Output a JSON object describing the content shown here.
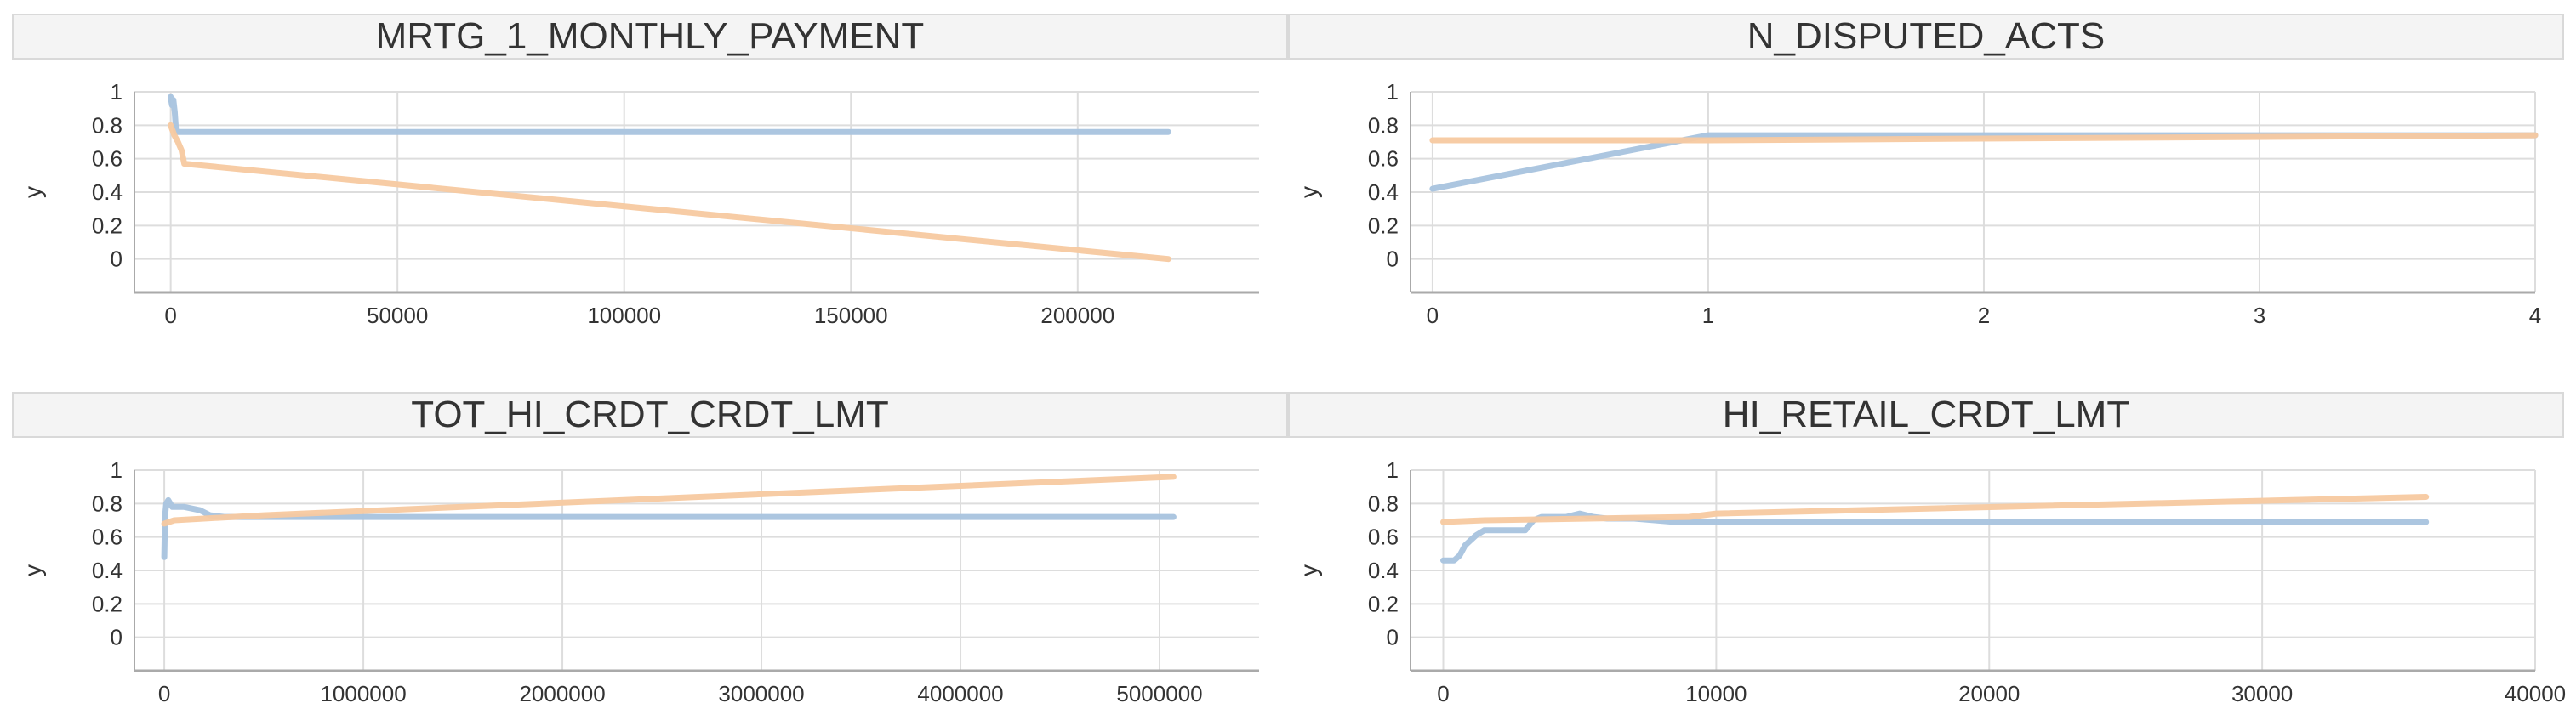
{
  "colors": {
    "series_blue": "#a8c3de",
    "series_orange": "#f7c9a0",
    "grid": "#dddddd",
    "axis": "#aaaaaa"
  },
  "chart_data": [
    {
      "type": "line",
      "title": "MRTG_1_MONTHLY_PAYMENT",
      "xlabel": "",
      "ylabel": "y",
      "xlim": [
        -8000,
        240000
      ],
      "ylim": [
        -0.2,
        1.0
      ],
      "xticks": [
        0,
        50000,
        100000,
        150000,
        200000
      ],
      "xtick_labels": [
        "0",
        "50000",
        "100000",
        "150000",
        "200000"
      ],
      "yticks": [
        0,
        0.2,
        0.4,
        0.6,
        0.8,
        1
      ],
      "ytick_labels": [
        "0",
        "0.2",
        "0.4",
        "0.6",
        "0.8",
        "1"
      ],
      "grid": true,
      "series": [
        {
          "color": "#a8c3de",
          "x": [
            0,
            300,
            600,
            900,
            1200,
            1500,
            220000
          ],
          "y": [
            0.97,
            0.92,
            0.95,
            0.88,
            0.76,
            0.76,
            0.76
          ]
        },
        {
          "color": "#f7c9a0",
          "x": [
            0,
            800,
            1600,
            2400,
            3000,
            220000
          ],
          "y": [
            0.8,
            0.74,
            0.7,
            0.65,
            0.57,
            0.0
          ]
        }
      ]
    },
    {
      "type": "line",
      "title": "N_DISPUTED_ACTS",
      "xlabel": "",
      "ylabel": "y",
      "xlim": [
        -0.08,
        4
      ],
      "ylim": [
        -0.2,
        1.0
      ],
      "xticks": [
        0,
        1,
        2,
        3,
        4
      ],
      "xtick_labels": [
        "0",
        "1",
        "2",
        "3",
        "4"
      ],
      "yticks": [
        0,
        0.2,
        0.4,
        0.6,
        0.8,
        1
      ],
      "ytick_labels": [
        "0",
        "0.2",
        "0.4",
        "0.6",
        "0.8",
        "1"
      ],
      "grid": true,
      "series": [
        {
          "color": "#a8c3de",
          "x": [
            0,
            1,
            4
          ],
          "y": [
            0.42,
            0.74,
            0.74
          ]
        },
        {
          "color": "#f7c9a0",
          "x": [
            0,
            1,
            4
          ],
          "y": [
            0.71,
            0.71,
            0.74
          ]
        }
      ]
    },
    {
      "type": "line",
      "title": "TOT_HI_CRDT_CRDT_LMT",
      "xlabel": "",
      "ylabel": "y",
      "xlim": [
        -150000,
        5500000
      ],
      "ylim": [
        -0.2,
        1.0
      ],
      "xticks": [
        0,
        1000000,
        2000000,
        3000000,
        4000000,
        5000000
      ],
      "xtick_labels": [
        "0",
        "1000000",
        "2000000",
        "3000000",
        "4000000",
        "5000000"
      ],
      "yticks": [
        0,
        0.2,
        0.4,
        0.6,
        0.8,
        1
      ],
      "ytick_labels": [
        "0",
        "0.2",
        "0.4",
        "0.6",
        "0.8",
        "1"
      ],
      "grid": true,
      "series": [
        {
          "color": "#a8c3de",
          "x": [
            0,
            2000,
            5000,
            10000,
            20000,
            40000,
            100000,
            180000,
            230000,
            300000,
            5070000
          ],
          "y": [
            0.48,
            0.62,
            0.74,
            0.8,
            0.82,
            0.78,
            0.78,
            0.76,
            0.73,
            0.72,
            0.72
          ]
        },
        {
          "color": "#f7c9a0",
          "x": [
            0,
            50000,
            200000,
            500000,
            5070000
          ],
          "y": [
            0.68,
            0.7,
            0.71,
            0.73,
            0.96
          ]
        }
      ]
    },
    {
      "type": "line",
      "title": "HI_RETAIL_CRDT_LMT",
      "xlabel": "",
      "ylabel": "y",
      "xlim": [
        -1200,
        40000
      ],
      "ylim": [
        -0.2,
        1.0
      ],
      "xticks": [
        0,
        10000,
        20000,
        30000,
        40000
      ],
      "xtick_labels": [
        "0",
        "10000",
        "20000",
        "30000",
        "40000"
      ],
      "yticks": [
        0,
        0.2,
        0.4,
        0.6,
        0.8,
        1
      ],
      "ytick_labels": [
        "0",
        "0.2",
        "0.4",
        "0.6",
        "0.8",
        "1"
      ],
      "grid": true,
      "series": [
        {
          "color": "#a8c3de",
          "x": [
            0,
            400,
            600,
            800,
            1000,
            1200,
            1500,
            1800,
            2200,
            3000,
            3300,
            3600,
            4000,
            4500,
            5000,
            5500,
            6000,
            7000,
            8500,
            10000,
            36000
          ],
          "y": [
            0.46,
            0.46,
            0.49,
            0.55,
            0.58,
            0.61,
            0.64,
            0.64,
            0.64,
            0.64,
            0.7,
            0.72,
            0.72,
            0.72,
            0.74,
            0.72,
            0.71,
            0.71,
            0.69,
            0.69,
            0.69
          ]
        },
        {
          "color": "#f7c9a0",
          "x": [
            0,
            1500,
            9000,
            10000,
            36000
          ],
          "y": [
            0.69,
            0.7,
            0.72,
            0.74,
            0.84
          ]
        }
      ]
    }
  ]
}
